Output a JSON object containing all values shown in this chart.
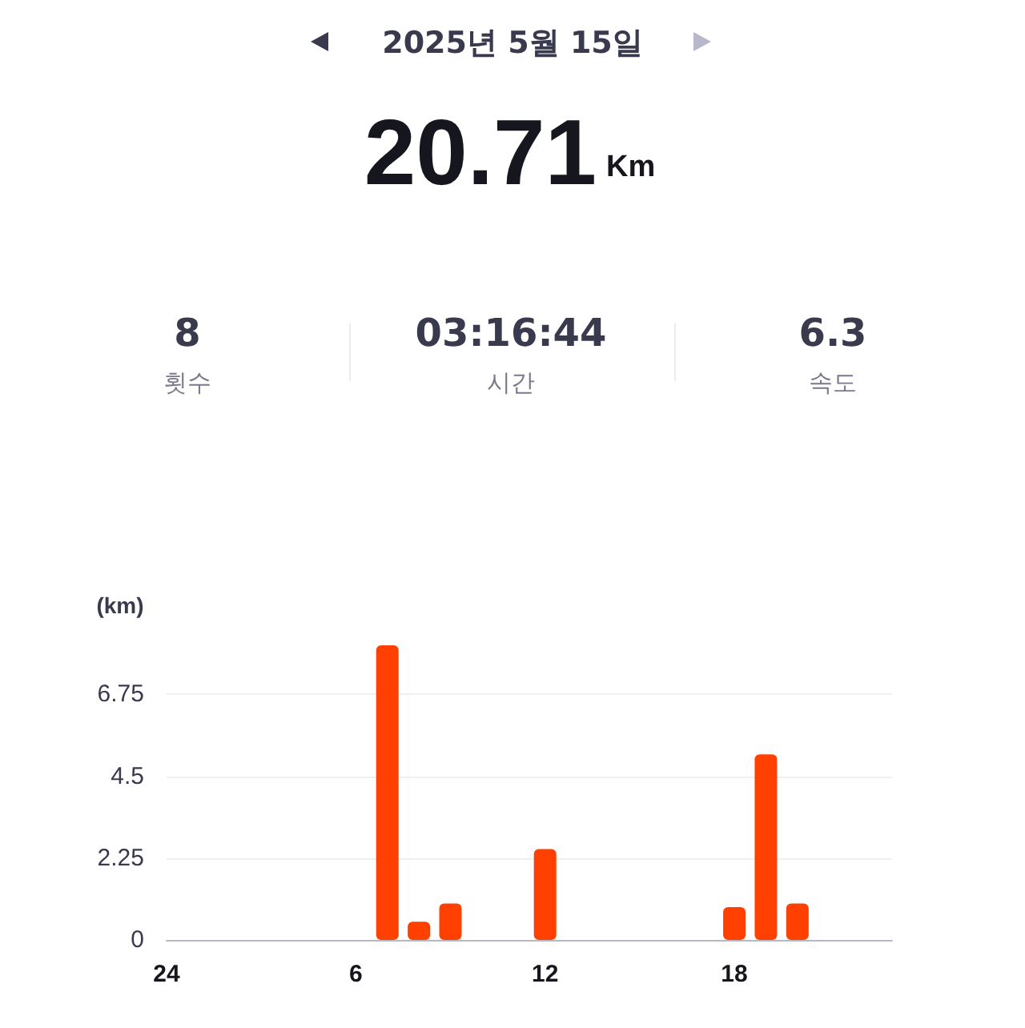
{
  "chart_data": {
    "type": "bar",
    "title": "2025년 5월 15일",
    "ylabel": "(km)",
    "annotations": [
      "20.71",
      "Km",
      "8",
      "횟수",
      "03:16:44",
      "시간",
      "6.3",
      "속도"
    ],
    "categories": [
      "24",
      null,
      null,
      null,
      null,
      null,
      "6",
      null,
      null,
      null,
      null,
      null,
      "12",
      null,
      null,
      null,
      null,
      null,
      "18",
      null,
      null,
      null,
      null,
      null
    ],
    "values": [
      null,
      null,
      null,
      null,
      null,
      null,
      null,
      8.1,
      0.5,
      1.0,
      null,
      null,
      2.5,
      null,
      null,
      null,
      null,
      null,
      0.9,
      5.1,
      1.0,
      null,
      null,
      null
    ],
    "color": "#ff4000",
    "ylim": [
      0,
      8.1
    ],
    "yticks": [
      0,
      2.25,
      4.5,
      6.75
    ],
    "grid": "y"
  }
}
